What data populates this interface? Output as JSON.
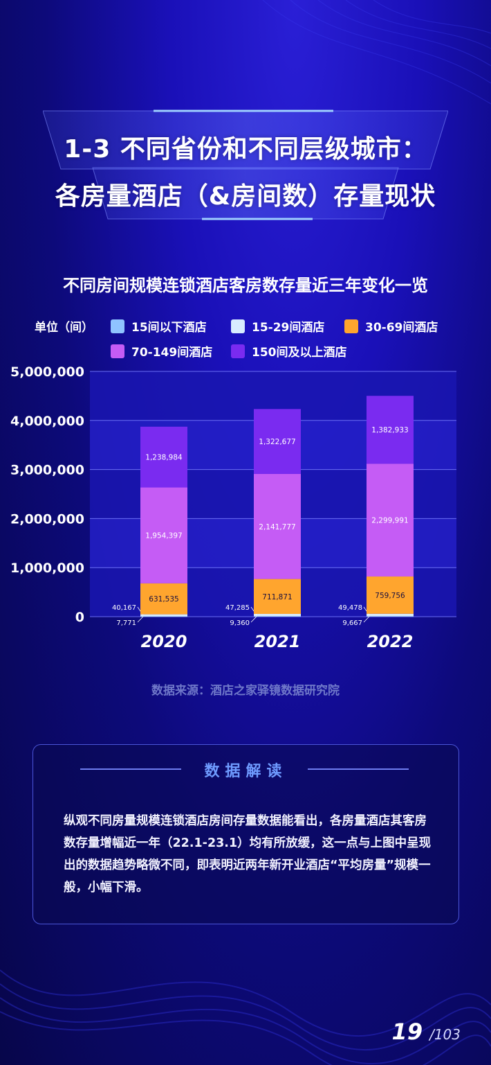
{
  "header": {
    "title_line1": "1-3 不同省份和不同层级城市：",
    "title_line2": "各房量酒店（&房间数）存量现状"
  },
  "chart_data": {
    "type": "bar",
    "stacked": true,
    "title": "不同房间规模连锁酒店客房数存量近三年变化一览",
    "unit_label": "单位（间）",
    "categories": [
      "2020",
      "2021",
      "2022"
    ],
    "ylim": [
      0,
      5000000
    ],
    "yticks": [
      "0",
      "1,000,000",
      "2,000,000",
      "3,000,000",
      "4,000,000",
      "5,000,000"
    ],
    "series": [
      {
        "name": "15间以下酒店",
        "color": "#8fc4ff",
        "values": [
          7771,
          9360,
          9667
        ],
        "labels": [
          "7,771",
          "9,360",
          "9,667"
        ]
      },
      {
        "name": "15-29间酒店",
        "color": "#d8ecff",
        "values": [
          40167,
          47285,
          49478
        ],
        "labels": [
          "40,167",
          "47,285",
          "49,478"
        ]
      },
      {
        "name": "30-69间酒店",
        "color": "#ffa52e",
        "values": [
          631535,
          711871,
          759756
        ],
        "labels": [
          "631,535",
          "711,871",
          "759,756"
        ]
      },
      {
        "name": "70-149间酒店",
        "color": "#c55cf5",
        "values": [
          1954397,
          2141777,
          2299991
        ],
        "labels": [
          "1,954,397",
          "2,141,777",
          "2,299,991"
        ]
      },
      {
        "name": "150间及以上酒店",
        "color": "#7a2bf0",
        "values": [
          1238984,
          1322677,
          1382933
        ],
        "labels": [
          "1,238,984",
          "1,322,677",
          "1,382,933"
        ]
      }
    ],
    "legend_position": "top"
  },
  "source": "数据来源：酒店之家驿镜数据研究院",
  "insight": {
    "heading": "数据解读",
    "text": "纵观不同房量规模连锁酒店房间存量数据能看出，各房量酒店其客房数存量增幅近一年（22.1-23.1）均有所放缓，这一点与上图中呈现出的数据趋势略微不同，即表明近两年新开业酒店“平均房量”规模一般，小幅下滑。"
  },
  "page": {
    "current": "19",
    "total": "/103"
  }
}
